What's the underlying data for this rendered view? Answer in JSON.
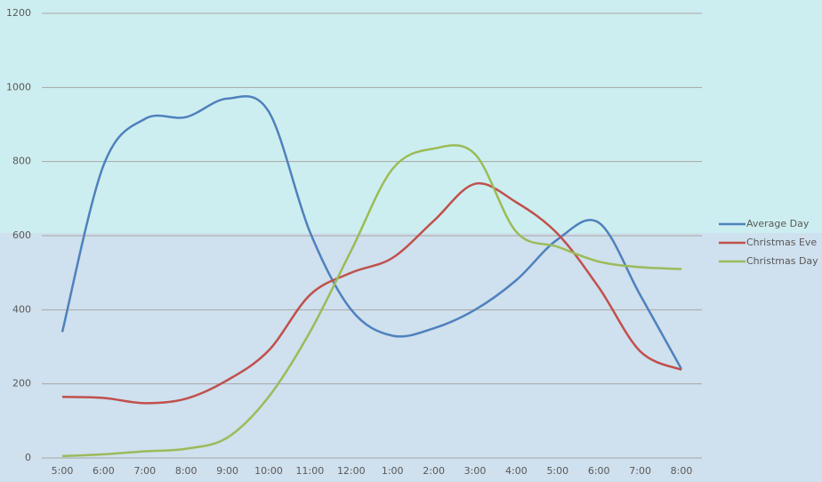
{
  "chart_data": {
    "type": "line",
    "categories": [
      "5:00",
      "6:00",
      "7:00",
      "8:00",
      "9:00",
      "10:00",
      "11:00",
      "12:00",
      "1:00",
      "2:00",
      "3:00",
      "4:00",
      "5:00",
      "6:00",
      "7:00",
      "8:00"
    ],
    "series": [
      {
        "name": "Average Day",
        "color": "#4f81bd",
        "values": [
          340,
          790,
          915,
          920,
          970,
          935,
          610,
          400,
          330,
          350,
          400,
          480,
          590,
          635,
          440,
          240
        ]
      },
      {
        "name": "Christmas Eve",
        "color": "#c0504d",
        "values": [
          165,
          162,
          148,
          160,
          210,
          290,
          440,
          500,
          540,
          640,
          740,
          690,
          605,
          460,
          288,
          238
        ]
      },
      {
        "name": "Christmas Day",
        "color": "#9bbb59",
        "values": [
          5,
          10,
          18,
          25,
          55,
          165,
          340,
          560,
          780,
          835,
          820,
          610,
          570,
          530,
          515,
          510
        ]
      }
    ],
    "ylim": [
      0,
      1200
    ],
    "yticks": [
      0,
      200,
      400,
      600,
      800,
      1000,
      1200
    ],
    "grid": true,
    "smooth": true,
    "legend": "right"
  }
}
